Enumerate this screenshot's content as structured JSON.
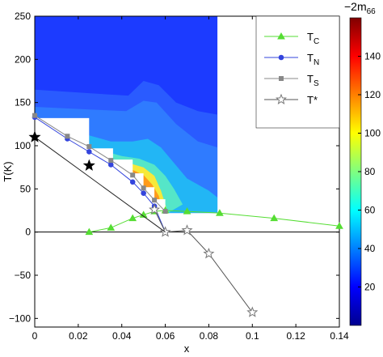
{
  "chart_data": {
    "type": "line",
    "xlabel": "x",
    "ylabel": "T(K)",
    "xlim": [
      0,
      0.14
    ],
    "ylim": [
      -110,
      250
    ],
    "x_ticks": [
      0,
      0.02,
      0.04,
      0.06,
      0.08,
      0.1,
      0.12,
      0.14
    ],
    "x_tick_labels": [
      "0",
      "0.02",
      "0.04",
      "0.06",
      "0.08",
      "0.1",
      "0.12",
      "0.14"
    ],
    "y_ticks": [
      -100,
      -50,
      0,
      50,
      100,
      150,
      200,
      250
    ],
    "y_tick_labels": [
      "−100",
      "−50",
      "0",
      "50",
      "100",
      "150",
      "200",
      "250"
    ],
    "series": [
      {
        "name": "T_C",
        "legend_main": "T",
        "legend_sub": "C",
        "color": "#55dd33",
        "marker": "triangle",
        "x": [
          0.025,
          0.035,
          0.045,
          0.05,
          0.055,
          0.06,
          0.07,
          0.085,
          0.11,
          0.14
        ],
        "y": [
          0,
          5,
          16,
          20,
          24,
          25,
          24,
          22,
          16,
          7
        ]
      },
      {
        "name": "T_N",
        "legend_main": "T",
        "legend_sub": "N",
        "color": "#3344dd",
        "marker": "circle",
        "x": [
          0,
          0.015,
          0.025,
          0.035,
          0.045,
          0.05,
          0.055,
          0.06
        ],
        "y": [
          133,
          108,
          93,
          78,
          58,
          45,
          30,
          0
        ]
      },
      {
        "name": "T_S",
        "legend_main": "T",
        "legend_sub": "S",
        "color": "#888888",
        "marker": "square",
        "x": [
          0,
          0.015,
          0.025,
          0.035,
          0.045,
          0.05,
          0.055,
          0.06
        ],
        "y": [
          135,
          111,
          99,
          83,
          66,
          51,
          37,
          24
        ]
      },
      {
        "name": "T*",
        "legend_main": "T*",
        "legend_sub": "",
        "color": "#999999",
        "marker": "star",
        "x": [
          0.055,
          0.06,
          0.07,
          0.08,
          0.1
        ],
        "y": [
          26,
          0,
          2,
          -25,
          -93
        ]
      }
    ],
    "black_stars": {
      "x": [
        0,
        0.025
      ],
      "y": [
        110,
        77
      ]
    },
    "zero_line": {
      "y": 0,
      "x": [
        0,
        0.14
      ]
    },
    "colorbar": {
      "title": "−2m",
      "title_sub": "66",
      "range": [
        0,
        160
      ],
      "ticks": [
        20,
        40,
        60,
        80,
        100,
        120,
        140
      ],
      "tick_labels": [
        "20",
        "40",
        "60",
        "80",
        "100",
        "120",
        "140"
      ]
    }
  }
}
